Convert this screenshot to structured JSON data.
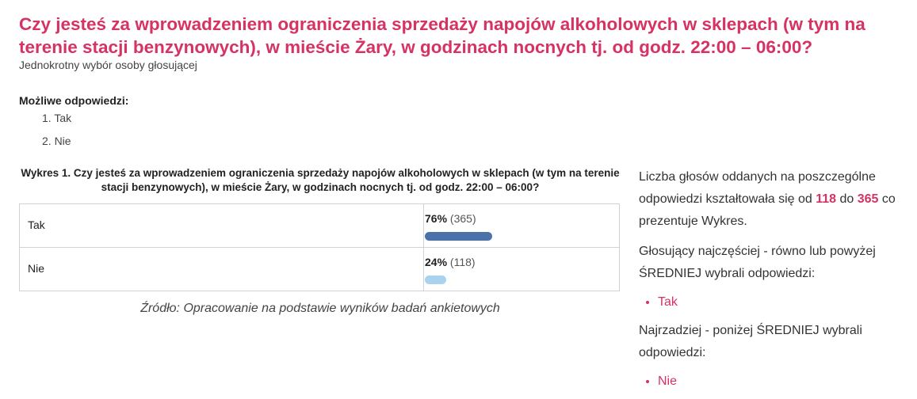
{
  "question": {
    "title": "Czy jesteś za wprowadzeniem ograniczenia sprzedaży napojów alkoholowych w sklepach (w tym na terenie stacji benzynowych), w mieście Żary, w godzinach nocnych tj. od godz. 22:00 – 06:00?",
    "subtitle": "Jednokrotny wybór osoby głosującej",
    "answers_label": "Możliwe odpowiedzi:",
    "options": [
      "1. Tak",
      "2. Nie"
    ]
  },
  "chart": {
    "title": "Wykres 1. Czy jesteś za wprowadzeniem ograniczenia sprzedaży napojów alkoholowych w sklepach (w tym na terenie stacji benzynowych), w mieście Żary, w godzinach nocnych tj. od godz. 22:00 – 06:00?",
    "source": "Źródło: Opracowanie na podstawie wyników badań ankietowych",
    "rows": [
      {
        "label": "Tak",
        "percent_text": "76%",
        "count_text": "(365)",
        "fraction": 0.76,
        "color": "#4a72a8"
      },
      {
        "label": "Nie",
        "percent_text": "24%",
        "count_text": "(118)",
        "fraction": 0.24,
        "color": "#a9d2ee"
      }
    ]
  },
  "chart_data": {
    "type": "bar",
    "categories": [
      "Tak",
      "Nie"
    ],
    "values": [
      76,
      24
    ],
    "counts": [
      365,
      118
    ]
  },
  "summary": {
    "p1_before": "Liczba głosów oddanych na poszczególne odpowiedzi kształtowała się od ",
    "p1_min": "118",
    "p1_mid": " do ",
    "p1_max": "365",
    "p1_after": " co prezentuje Wykres.",
    "p2": "Głosujący najczęściej - równo lub powyżej ŚREDNIEJ wybrali odpowiedzi:",
    "most": "Tak",
    "p3": "Najrzadziej - poniżej ŚREDNIEJ wybrali odpowiedzi:",
    "least": "Nie"
  }
}
